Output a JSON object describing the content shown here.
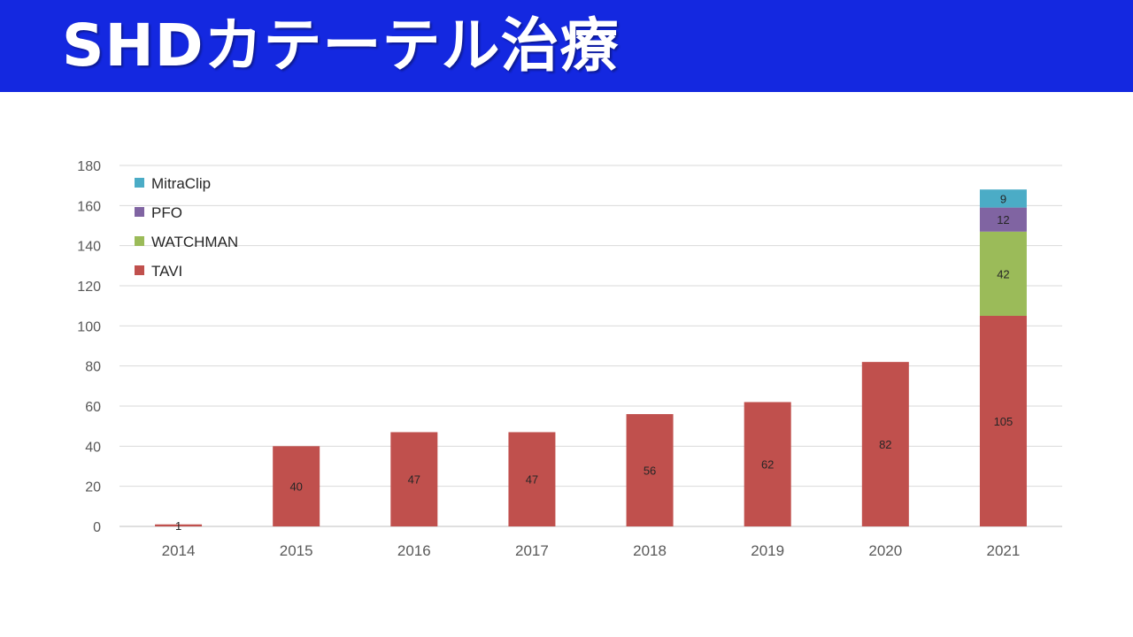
{
  "header": {
    "title": "SHDカテーテル治療",
    "bg_color": "#1428e0"
  },
  "chart_data": {
    "type": "bar",
    "stacked": true,
    "title": "",
    "xlabel": "",
    "ylabel": "",
    "categories": [
      "2014",
      "2015",
      "2016",
      "2017",
      "2018",
      "2019",
      "2020",
      "2021"
    ],
    "series": [
      {
        "name": "TAVI",
        "color": "#c0504d",
        "values": [
          1,
          40,
          47,
          47,
          56,
          62,
          82,
          105
        ]
      },
      {
        "name": "WATCHMAN",
        "color": "#9bbb59",
        "values": [
          0,
          0,
          0,
          0,
          0,
          0,
          0,
          42
        ]
      },
      {
        "name": "PFO",
        "color": "#8064a2",
        "values": [
          0,
          0,
          0,
          0,
          0,
          0,
          0,
          12
        ]
      },
      {
        "name": "MitraClip",
        "color": "#4bacc6",
        "values": [
          0,
          0,
          0,
          0,
          0,
          0,
          0,
          9
        ]
      }
    ],
    "ylim": [
      0,
      180
    ],
    "yticks": [
      0,
      20,
      40,
      60,
      80,
      100,
      120,
      140,
      160,
      180
    ],
    "grid": true,
    "legend_position": "top-left",
    "legend_order": [
      "MitraClip",
      "PFO",
      "WATCHMAN",
      "TAVI"
    ]
  }
}
